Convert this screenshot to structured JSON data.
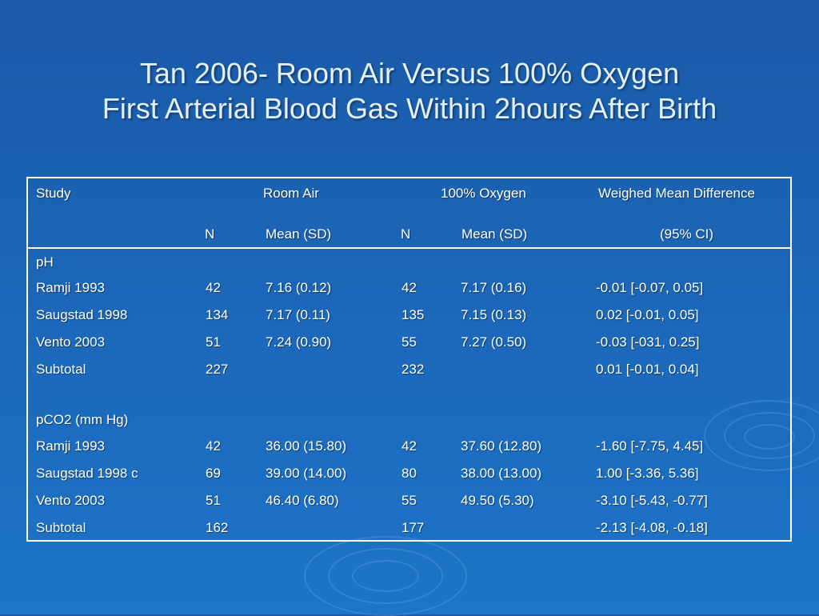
{
  "slide": {
    "title_line1": "Tan 2006- Room Air Versus 100% Oxygen",
    "title_line2": "First Arterial Blood Gas Within 2hours  After Birth"
  },
  "table": {
    "header": {
      "study": "Study",
      "room_air": "Room Air",
      "oxygen": "100% Oxygen",
      "wmd": "Weighed Mean Difference",
      "n1": "N",
      "mean1": "Mean (SD)",
      "n2": "N",
      "mean2": "Mean (SD)",
      "ci": "(95% CI)"
    },
    "rows": [
      {
        "study": "pH",
        "n1": "",
        "mean1": "",
        "n2": "",
        "mean2": "",
        "wmd": ""
      },
      {
        "study": "Ramji 1993",
        "n1": "42",
        "mean1": "7.16 (0.12)",
        "n2": "42",
        "mean2": "7.17 (0.16)",
        "wmd": "-0.01 [-0.07, 0.05]"
      },
      {
        "study": "Saugstad 1998",
        "n1": "134",
        "mean1": "7.17 (0.11)",
        "n2": "135",
        "mean2": "7.15 (0.13)",
        "wmd": "0.02 [-0.01, 0.05]"
      },
      {
        "study": "Vento 2003",
        "n1": "51",
        "mean1": "7.24 (0.90)",
        "n2": "55",
        "mean2": "7.27 (0.50)",
        "wmd": "-0.03 [-031, 0.25]"
      },
      {
        "study": "Subtotal",
        "n1": "227",
        "mean1": "",
        "n2": "232",
        "mean2": "",
        "wmd": "0.01 [-0.01, 0.04]"
      },
      {
        "study": "pCO2 (mm Hg)",
        "n1": "",
        "mean1": "",
        "n2": "",
        "mean2": "",
        "wmd": ""
      },
      {
        "study": "Ramji 1993",
        "n1": "42",
        "mean1": "36.00 (15.80)",
        "n2": "42",
        "mean2": "37.60 (12.80)",
        "wmd": "-1.60 [-7.75, 4.45]"
      },
      {
        "study": "Saugstad 1998 c",
        "n1": "69",
        "mean1": "39.00 (14.00)",
        "n2": "80",
        "mean2": "38.00 (13.00)",
        "wmd": "1.00 [-3.36, 5.36]"
      },
      {
        "study": "Vento 2003",
        "n1": "51",
        "mean1": "46.40 (6.80)",
        "n2": "55",
        "mean2": "49.50 (5.30)",
        "wmd": "-3.10 [-5.43, -0.77]"
      },
      {
        "study": "Subtotal",
        "n1": "162",
        "mean1": "",
        "n2": "177",
        "mean2": "",
        "wmd": "-2.13 [-4.08, -0.18]"
      }
    ]
  }
}
